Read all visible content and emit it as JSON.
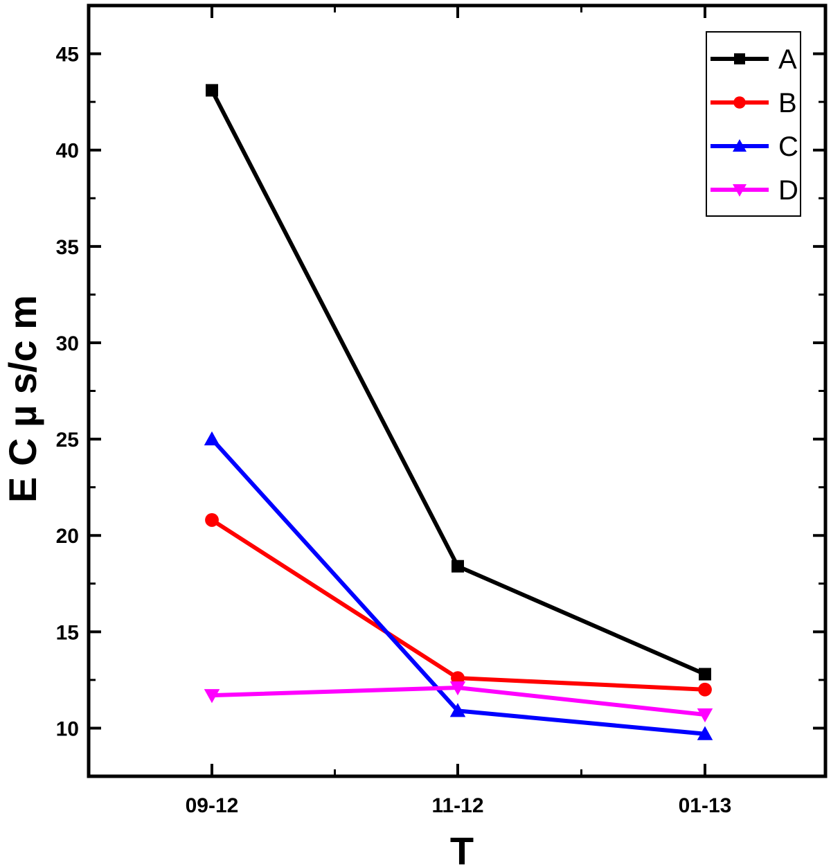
{
  "chart_data": {
    "type": "line",
    "title": "",
    "xlabel": "T",
    "ylabel": "E C  µ s/c m",
    "categories": [
      "09-12",
      "11-12",
      "01-13"
    ],
    "ylim": [
      7.5,
      47.5
    ],
    "yticks": [
      10,
      15,
      20,
      25,
      30,
      35,
      40,
      45
    ],
    "grid": false,
    "legend_position": "top-right",
    "series": [
      {
        "name": "A",
        "values": [
          43.1,
          18.4,
          12.8
        ],
        "color": "#000000",
        "marker": "square"
      },
      {
        "name": "B",
        "values": [
          20.8,
          12.6,
          12.0
        ],
        "color": "#ff0000",
        "marker": "circle"
      },
      {
        "name": "C",
        "values": [
          25.0,
          10.9,
          9.7
        ],
        "color": "#0000ff",
        "marker": "triangle-up"
      },
      {
        "name": "D",
        "values": [
          11.7,
          12.1,
          10.7
        ],
        "color": "#ff00ff",
        "marker": "triangle-down"
      }
    ]
  }
}
